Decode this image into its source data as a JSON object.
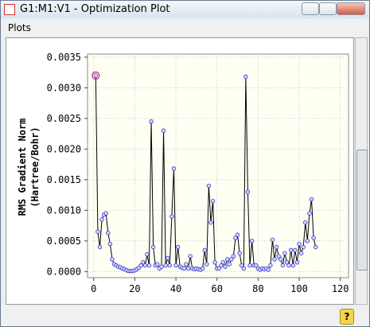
{
  "window": {
    "title": "G1:M1:V1 - Optimization Plot",
    "menu": [
      "Plots"
    ]
  },
  "chart_data": {
    "type": "line",
    "ylabel": [
      "RMS Gradient Norm",
      "(Hartree/Bohr)"
    ],
    "x": [
      1,
      2,
      3,
      4,
      5,
      6,
      7,
      8,
      9,
      10,
      11,
      12,
      13,
      14,
      15,
      16,
      17,
      18,
      19,
      20,
      21,
      22,
      23,
      24,
      25,
      26,
      27,
      28,
      29,
      30,
      31,
      32,
      33,
      34,
      35,
      36,
      37,
      38,
      39,
      40,
      41,
      42,
      43,
      44,
      45,
      46,
      47,
      48,
      49,
      50,
      51,
      52,
      53,
      54,
      55,
      56,
      57,
      58,
      59,
      60,
      61,
      62,
      63,
      64,
      65,
      66,
      67,
      68,
      69,
      70,
      71,
      72,
      73,
      74,
      75,
      76,
      77,
      78,
      79,
      80,
      81,
      82,
      83,
      84,
      85,
      86,
      87,
      88,
      89,
      90,
      91,
      92,
      93,
      94,
      95,
      96,
      97,
      98,
      99,
      100,
      101,
      102,
      103,
      104,
      105,
      106,
      107,
      108
    ],
    "series": [
      {
        "color": "#000000",
        "marker_color": "#3333cc",
        "values": [
          0.0032,
          0.00065,
          0.0004,
          0.00085,
          0.00093,
          0.00095,
          0.00063,
          0.00045,
          0.0002,
          0.00012,
          0.0001,
          8e-05,
          7e-05,
          5e-05,
          4e-05,
          2e-05,
          1e-05,
          1e-05,
          1e-05,
          2e-05,
          4e-05,
          6e-05,
          0.0001,
          0.00015,
          0.0001,
          0.00028,
          0.0001,
          0.00245,
          0.0004,
          0.0001,
          0.00012,
          5e-05,
          8e-05,
          0.0023,
          0.0001,
          0.00022,
          0.0001,
          0.0009,
          0.00168,
          0.0001,
          0.0004,
          8e-05,
          6e-05,
          5e-05,
          0.00012,
          5e-05,
          0.00025,
          5e-05,
          4e-05,
          5e-05,
          4e-05,
          3e-05,
          5e-05,
          0.00035,
          0.00012,
          0.0014,
          0.0008,
          0.00115,
          0.00015,
          5e-05,
          5e-05,
          0.0001,
          0.00015,
          8e-05,
          0.0002,
          0.00012,
          0.0002,
          0.00025,
          0.00055,
          0.0006,
          0.0003,
          0.0001,
          5e-05,
          0.00318,
          0.0013,
          0.0001,
          0.0005,
          0.0001,
          0.0001,
          5e-05,
          3e-05,
          5e-05,
          4e-05,
          5e-05,
          3e-05,
          0.0001,
          0.00052,
          0.0002,
          0.0004,
          0.00025,
          0.0002,
          0.0001,
          0.0003,
          0.00015,
          0.0001,
          0.00035,
          0.0001,
          0.00035,
          0.00015,
          0.00045,
          0.0003,
          0.0004,
          0.0008,
          0.0005,
          0.00095,
          0.00118,
          0.00055,
          0.0004
        ]
      }
    ],
    "highlight_point": 0,
    "highlight_color": "#cc3366",
    "xlim": [
      -3,
      124
    ],
    "xticks": [
      0,
      20,
      40,
      60,
      80,
      100,
      120
    ],
    "ylim": [
      -0.0001,
      0.00355
    ],
    "yticks": [
      {
        "value": 0,
        "label": "0.0000"
      },
      {
        "value": 0.0005,
        "label": "0.0005"
      },
      {
        "value": 0.001,
        "label": "0.0010"
      },
      {
        "value": 0.0015,
        "label": "0.0015"
      },
      {
        "value": 0.002,
        "label": "0.0020"
      },
      {
        "value": 0.0025,
        "label": "0.0025"
      },
      {
        "value": 0.003,
        "label": "0.0030"
      },
      {
        "value": 0.0035,
        "label": "0.0035"
      }
    ],
    "grid": true
  }
}
